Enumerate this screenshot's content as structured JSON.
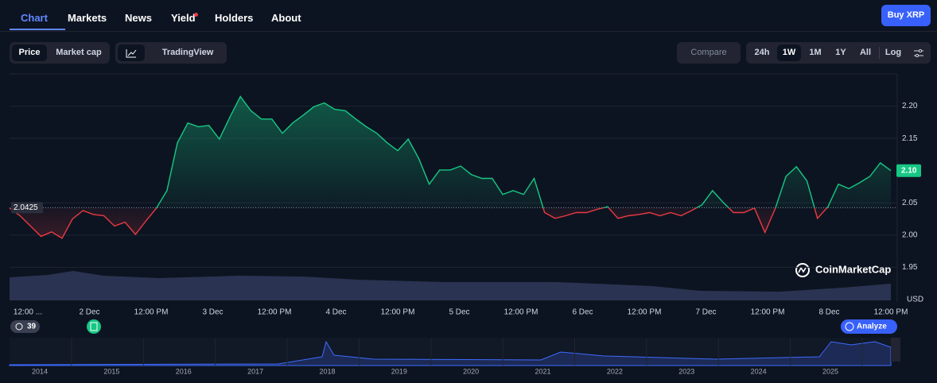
{
  "nav": {
    "tabs": [
      "Chart",
      "Markets",
      "News",
      "Yield",
      "Holders",
      "About"
    ],
    "button": "Buy XRP"
  },
  "toolbar": {
    "modes": [
      "Price",
      "Market cap"
    ],
    "tradingview": "TradingView",
    "compare": "Compare",
    "ranges": [
      "24h",
      "1W",
      "1M",
      "1Y",
      "All"
    ],
    "log": "Log"
  },
  "chart_data": {
    "type": "line",
    "values": [
      2.042,
      2.03,
      2.014,
      1.998,
      2.005,
      1.995,
      2.025,
      2.038,
      2.032,
      2.03,
      2.014,
      2.02,
      2.001,
      2.022,
      2.042,
      2.069,
      2.143,
      2.174,
      2.168,
      2.17,
      2.149,
      2.183,
      2.215,
      2.193,
      2.18,
      2.18,
      2.158,
      2.174,
      2.186,
      2.199,
      2.205,
      2.195,
      2.193,
      2.18,
      2.168,
      2.158,
      2.143,
      2.131,
      2.149,
      2.119,
      2.079,
      2.101,
      2.101,
      2.107,
      2.094,
      2.088,
      2.088,
      2.063,
      2.069,
      2.063,
      2.088,
      2.035,
      2.026,
      2.03,
      2.035,
      2.035,
      2.04,
      2.044,
      2.026,
      2.03,
      2.032,
      2.035,
      2.03,
      2.035,
      2.03,
      2.038,
      2.047,
      2.069,
      2.051,
      2.035,
      2.035,
      2.042,
      2.004,
      2.042,
      2.091,
      2.106,
      2.084,
      2.026,
      2.044,
      2.079,
      2.072,
      2.081,
      2.091,
      2.112,
      2.1
    ],
    "xticks": [
      "12:00 ...",
      "2 Dec",
      "12:00 PM",
      "3 Dec",
      "12:00 PM",
      "4 Dec",
      "12:00 PM",
      "5 Dec",
      "12:00 PM",
      "6 Dec",
      "12:00 PM",
      "7 Dec",
      "12:00 PM",
      "8 Dec",
      "12:00 PM"
    ],
    "ylim": [
      1.9,
      2.25
    ],
    "yticks": [
      {
        "value": 2.2,
        "label": "2.20"
      },
      2.15,
      2.05,
      {
        "value": 2.0,
        "label": "2.00"
      },
      1.95
    ],
    "reference": 2.0425,
    "last_price": {
      "value": 2.1,
      "label": "2.10"
    },
    "currency": "USD",
    "up_color": "#16c784",
    "down_color": "#ea3943",
    "watermark": "CoinMarketCap"
  },
  "badges": {
    "history": "39",
    "analyze": "Analyze"
  },
  "navigator": {
    "years": [
      "2014",
      "2015",
      "2016",
      "2017",
      "2018",
      "2019",
      "2020",
      "2021",
      "2022",
      "2023",
      "2024",
      "2025"
    ]
  }
}
